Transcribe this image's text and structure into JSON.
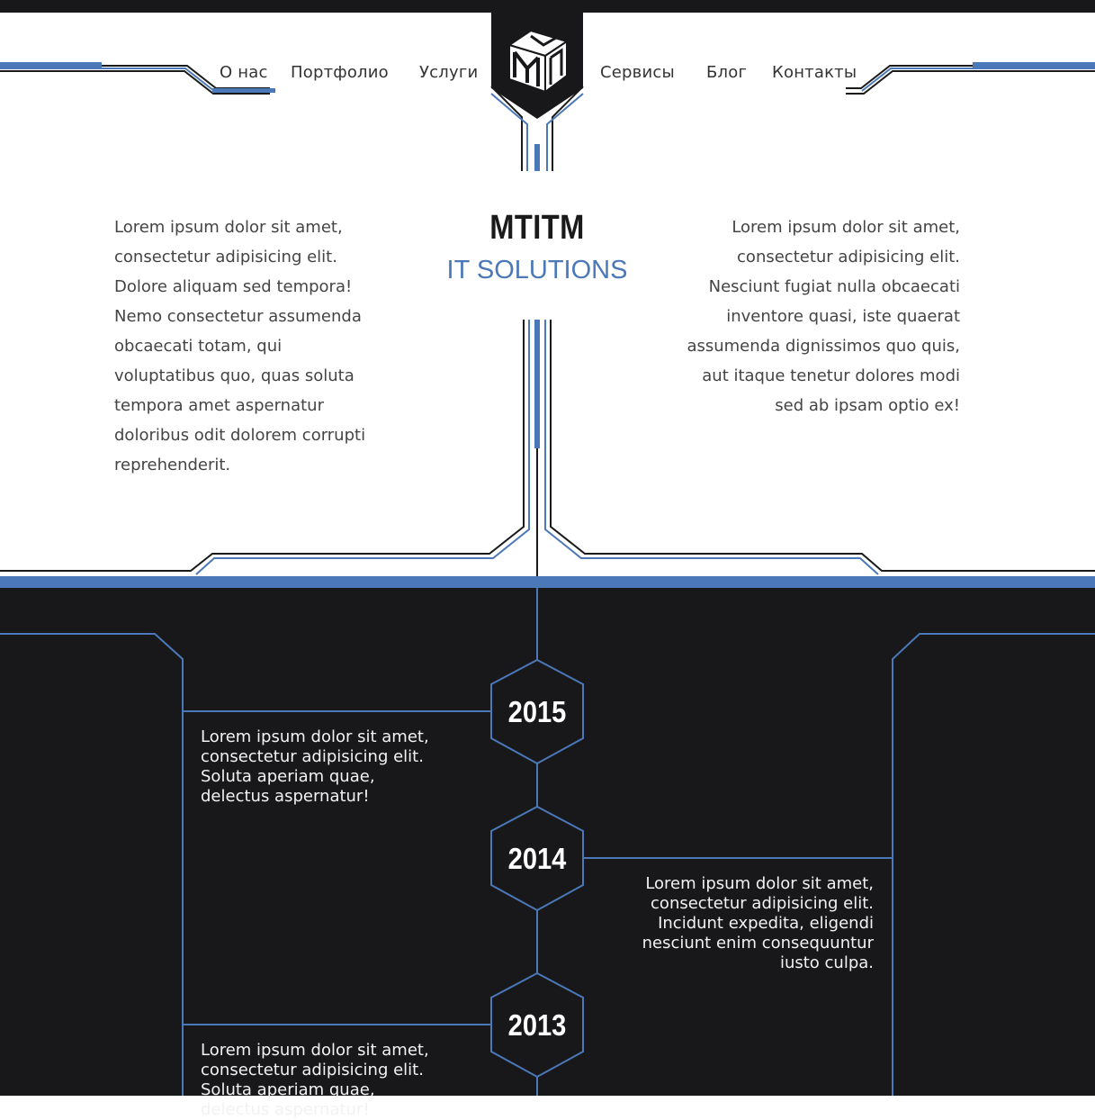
{
  "nav": {
    "left": [
      {
        "label": "О нас",
        "active": true
      },
      {
        "label": "Портфолио",
        "active": false
      },
      {
        "label": "Услуги",
        "active": false
      }
    ],
    "right": [
      {
        "label": "Сервисы",
        "active": false
      },
      {
        "label": "Блог",
        "active": false
      },
      {
        "label": "Контакты",
        "active": false
      }
    ]
  },
  "logo": {
    "icon": "cube-m-logo-icon",
    "lettering": "M"
  },
  "brand": {
    "title": "MTITM",
    "subtitle": "IT SOLUTIONS"
  },
  "intro": {
    "left_text": "Lorem ipsum dolor sit amet, consectetur adipisicing elit. Dolore aliquam sed tempora! Nemo consectetur assumenda obcaecati totam, qui voluptatibus quo, quas soluta tempora amet aspernatur doloribus odit dolorem corrupti reprehenderit.",
    "right_text": "Lorem ipsum dolor sit amet, consectetur adipisicing elit. Nesciunt fugiat nulla obcaecati inventore quasi, iste quaerat assumenda dignissimos quo quis, aut itaque tenetur dolores modi sed ab ipsam optio ex!"
  },
  "timeline": [
    {
      "year": "2015",
      "side": "left",
      "text": "Lorem ipsum dolor sit amet, consectetur adipisicing elit. Soluta aperiam quae, delectus aspernatur!"
    },
    {
      "year": "2014",
      "side": "right",
      "text": "Lorem ipsum dolor sit amet, consectetur adipisicing elit. Incidunt expedita, eligendi nesciunt enim consequuntur iusto culpa."
    },
    {
      "year": "2013",
      "side": "left",
      "text": "Lorem ipsum dolor sit amet, consectetur adipisicing elit. Soluta aperiam quae, delectus aspernatur!"
    }
  ],
  "colors": {
    "accent": "#4a78b8",
    "dark": "#18181a",
    "text": "#444444"
  }
}
